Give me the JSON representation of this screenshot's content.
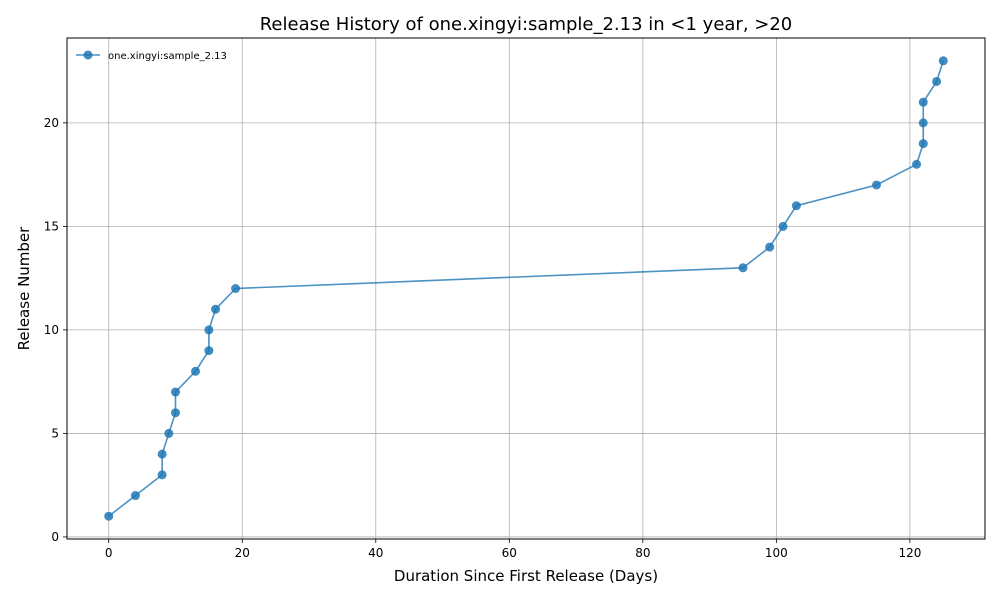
{
  "chart_data": {
    "type": "line",
    "title": "Release History of one.xingyi:sample_2.13 in <1 year, >20",
    "xlabel": "Duration Since First Release (Days)",
    "ylabel": "Release Number",
    "xlim": [
      -6.25,
      131.25
    ],
    "ylim": [
      -0.1,
      24.1
    ],
    "xticks": [
      0,
      20,
      40,
      60,
      80,
      100,
      120
    ],
    "yticks": [
      0,
      5,
      10,
      15,
      20
    ],
    "grid": true,
    "legend_position": "top-left",
    "series": [
      {
        "name": "one.xingyi:sample_2.13",
        "color": "#1f77b4",
        "x": [
          0,
          4,
          8,
          8,
          9,
          10,
          10,
          13,
          15,
          15,
          16,
          19,
          95,
          99,
          101,
          103,
          115,
          121,
          122,
          122,
          122,
          124,
          125
        ],
        "y": [
          1,
          2,
          3,
          4,
          5,
          6,
          7,
          8,
          9,
          10,
          11,
          12,
          13,
          14,
          15,
          16,
          17,
          18,
          19,
          20,
          21,
          22,
          23
        ]
      }
    ]
  }
}
